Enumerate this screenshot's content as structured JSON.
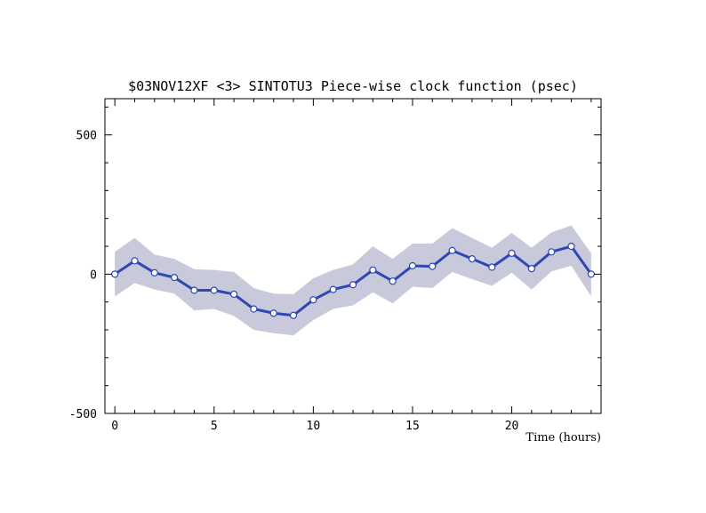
{
  "chart_data": {
    "type": "line",
    "title": "$03NOV12XF <3>  SINTOTU3  Piece-wise clock function (psec)",
    "xlabel": "Time (hours)",
    "ylabel": "",
    "xlim": [
      -0.5,
      24.5
    ],
    "ylim": [
      -500,
      630
    ],
    "x_ticks": [
      0,
      5,
      10,
      15,
      20
    ],
    "y_ticks": [
      -500,
      0,
      500
    ],
    "grid": false,
    "band_color": "#c8cadc",
    "line_color": "#2f47b3",
    "x": [
      0,
      1,
      2,
      3,
      4,
      5,
      6,
      7,
      8,
      9,
      10,
      11,
      12,
      13,
      14,
      15,
      16,
      17,
      18,
      19,
      20,
      21,
      22,
      23,
      24
    ],
    "series": [
      {
        "values": [
          0,
          48,
          5,
          -12,
          -58,
          -58,
          -72,
          -125,
          -140,
          -148,
          -92,
          -55,
          -38,
          15,
          -25,
          30,
          28,
          85,
          55,
          25,
          75,
          20,
          80,
          100,
          0
        ],
        "lower": [
          -80,
          -32,
          -55,
          -70,
          -130,
          -125,
          -150,
          -200,
          -212,
          -220,
          -165,
          -125,
          -112,
          -65,
          -105,
          -45,
          -50,
          8,
          -18,
          -42,
          5,
          -55,
          10,
          30,
          -80
        ],
        "upper": [
          80,
          130,
          70,
          55,
          18,
          15,
          8,
          -50,
          -70,
          -72,
          -15,
          15,
          35,
          100,
          55,
          110,
          110,
          165,
          130,
          95,
          148,
          95,
          150,
          175,
          75
        ]
      }
    ]
  }
}
